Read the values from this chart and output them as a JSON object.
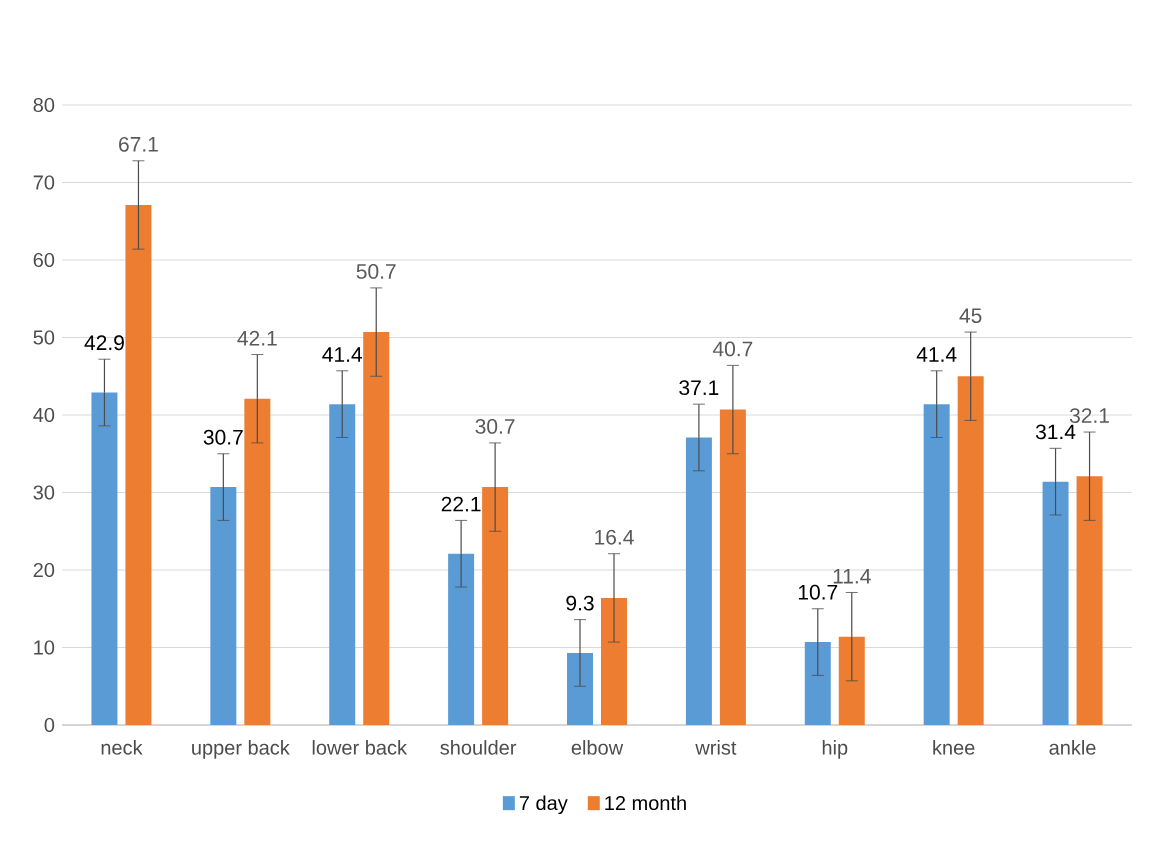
{
  "chart_data": {
    "type": "bar",
    "categories": [
      "neck",
      "upper back",
      "lower back",
      "shoulder",
      "elbow",
      "wrist",
      "hip",
      "knee",
      "ankle"
    ],
    "series": [
      {
        "name": "7 day",
        "color": "#5b9bd5",
        "values": [
          42.9,
          30.7,
          41.4,
          22.1,
          9.3,
          37.1,
          10.7,
          41.4,
          31.4
        ],
        "errors": [
          4.3,
          4.3,
          4.3,
          4.3,
          4.3,
          4.3,
          4.3,
          4.3,
          4.3
        ]
      },
      {
        "name": "12 month",
        "color": "#ed7d31",
        "values": [
          67.1,
          42.1,
          50.7,
          30.7,
          16.4,
          40.7,
          11.4,
          45,
          32.1
        ],
        "errors": [
          5.7,
          5.7,
          5.7,
          5.7,
          5.7,
          5.7,
          5.7,
          5.7,
          5.7
        ]
      }
    ],
    "ylim": [
      0,
      80
    ],
    "yticks": [
      0,
      10,
      20,
      30,
      40,
      50,
      60,
      70,
      80
    ],
    "grid": "y",
    "legend": "bottom",
    "data_labels": true
  }
}
